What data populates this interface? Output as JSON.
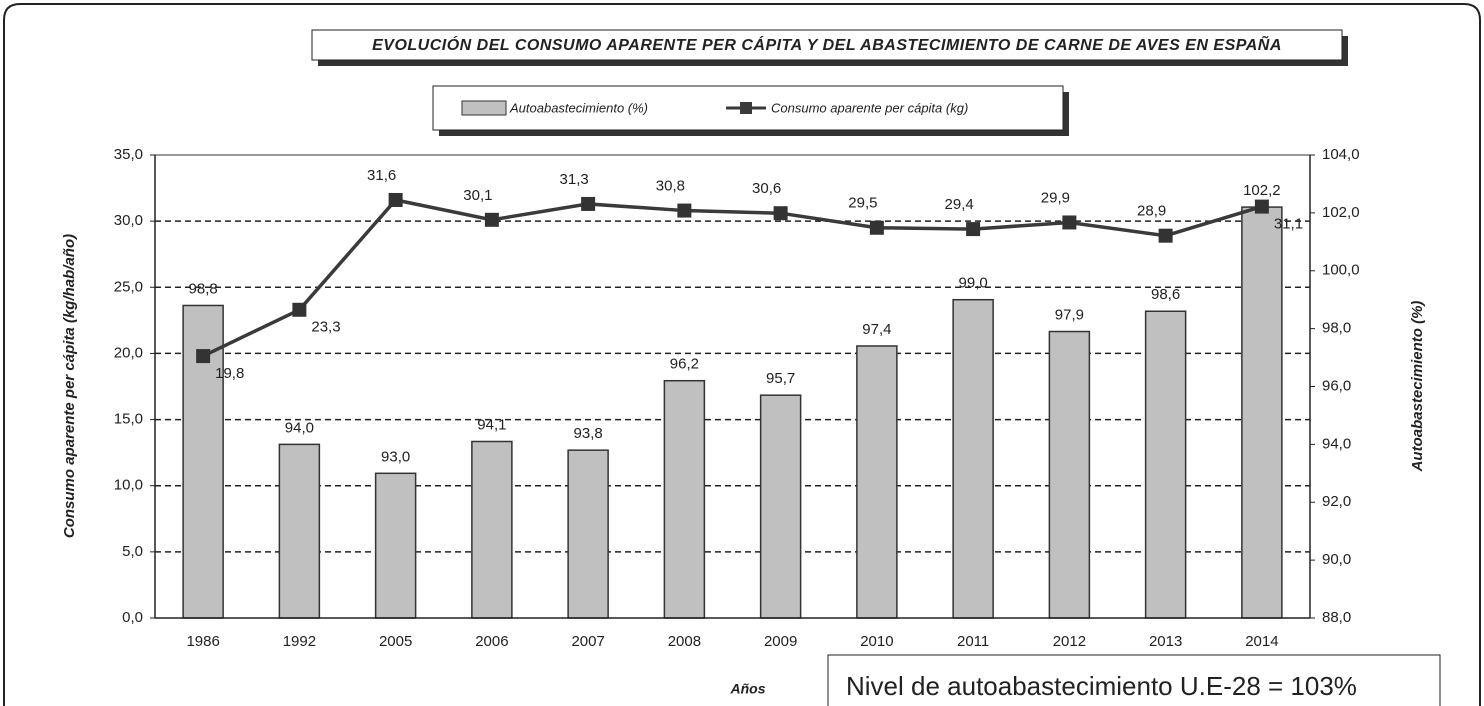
{
  "chart_data": {
    "type": "bar-line",
    "title": "EVOLUCIÓN DEL CONSUMO  APARENTE PER CÁPITA Y DEL ABASTECIMIENTO  DE CARNE DE AVES EN ESPAÑA",
    "x_label": "Años",
    "y_label": "Consumo aparente per cápita (kg/hab/año)",
    "y2_label": "Autoabastecimiento  (%)",
    "annotation": "Nivel de autoabastecimiento U.E-28 = 103%",
    "categories": [
      "1986",
      "1992",
      "2005",
      "2006",
      "2007",
      "2008",
      "2009",
      "2010",
      "2011",
      "2012",
      "2013",
      "2014"
    ],
    "series": [
      {
        "name": "Autoabastecimiento  (%)",
        "type": "bar",
        "axis": "y2",
        "color": "#c0c0c0",
        "values": [
          98.8,
          94.0,
          93.0,
          94.1,
          93.8,
          96.2,
          95.7,
          97.4,
          99.0,
          97.9,
          98.6,
          102.2
        ],
        "value_labels": [
          "98,8",
          "94,0",
          "93,0",
          "94,1",
          "93,8",
          "96,2",
          "95,7",
          "97,4",
          "99,0",
          "97,9",
          "98,6",
          "102,2"
        ]
      },
      {
        "name": "Consumo aparente per cápita (kg)",
        "type": "line",
        "axis": "y",
        "color": "#3a3a3a",
        "values": [
          19.8,
          23.3,
          31.6,
          30.1,
          31.3,
          30.8,
          30.6,
          29.5,
          29.4,
          29.9,
          28.9,
          31.1
        ],
        "value_labels": [
          "19,8",
          "23,3",
          "31,6",
          "30,1",
          "31,3",
          "30,8",
          "30,6",
          "29,5",
          "29,4",
          "29,9",
          "28,9",
          "31,1"
        ]
      }
    ],
    "ylim": [
      0,
      35
    ],
    "yticks": [
      {
        "value": 0,
        "label": "0,0"
      },
      {
        "value": 5,
        "label": "5,0"
      },
      {
        "value": 10,
        "label": "10,0"
      },
      {
        "value": 15,
        "label": "15,0"
      },
      {
        "value": 20,
        "label": "20,0"
      },
      {
        "value": 25,
        "label": "25,0"
      },
      {
        "value": 30,
        "label": "30,0"
      },
      {
        "value": 35,
        "label": "35,0"
      }
    ],
    "y2lim": [
      88,
      104
    ],
    "y2ticks": [
      {
        "value": 88,
        "label": "88,0"
      },
      {
        "value": 90,
        "label": "90,0"
      },
      {
        "value": 92,
        "label": "92,0"
      },
      {
        "value": 94,
        "label": "94,0"
      },
      {
        "value": 96,
        "label": "96,0"
      },
      {
        "value": 98,
        "label": "98,0"
      },
      {
        "value": 100,
        "label": "100,0"
      },
      {
        "value": 102,
        "label": "102,0"
      },
      {
        "value": 104,
        "label": "104,0"
      }
    ],
    "grid": true
  }
}
